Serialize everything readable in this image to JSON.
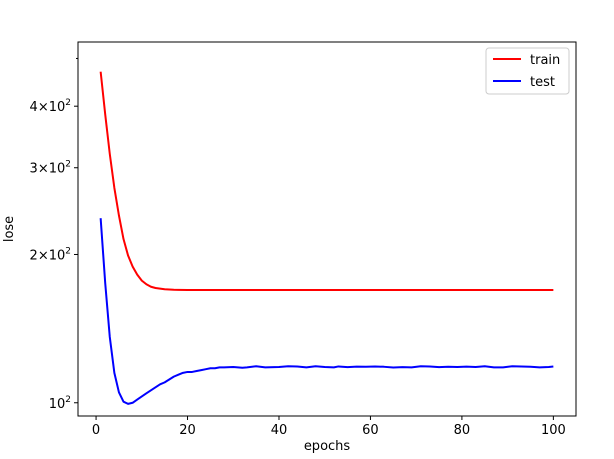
{
  "chart_data": {
    "type": "line",
    "xlabel": "epochs",
    "ylabel": "lose",
    "y_scale": "log",
    "xlim": [
      -3.95,
      104.95
    ],
    "ylim": [
      94,
      540
    ],
    "x_ticks": [
      0,
      20,
      40,
      60,
      80,
      100
    ],
    "y_ticks": [
      {
        "value": 100,
        "mantissa": "",
        "exp": "2"
      },
      {
        "value": 200,
        "mantissa": "2",
        "exp": "2"
      },
      {
        "value": 300,
        "mantissa": "3",
        "exp": "2"
      },
      {
        "value": 400,
        "mantissa": "4",
        "exp": "2"
      }
    ],
    "y_minor_ticks": [
      500
    ],
    "grid": false,
    "legend_position": "top-right",
    "series": [
      {
        "name": "train",
        "color": "#ff0000",
        "points": [
          [
            1,
            470
          ],
          [
            2,
            385
          ],
          [
            3,
            320
          ],
          [
            4,
            273
          ],
          [
            5,
            240
          ],
          [
            6,
            215
          ],
          [
            7,
            199
          ],
          [
            8,
            189
          ],
          [
            9,
            182
          ],
          [
            10,
            177
          ],
          [
            11,
            174
          ],
          [
            12,
            172
          ],
          [
            13,
            171
          ],
          [
            14,
            170.5
          ],
          [
            15,
            170
          ],
          [
            16,
            169.8
          ],
          [
            17,
            169.6
          ],
          [
            18,
            169.5
          ],
          [
            20,
            169.4
          ],
          [
            25,
            169.4
          ],
          [
            30,
            169.4
          ],
          [
            40,
            169.4
          ],
          [
            50,
            169.4
          ],
          [
            60,
            169.4
          ],
          [
            70,
            169.4
          ],
          [
            80,
            169.4
          ],
          [
            90,
            169.4
          ],
          [
            100,
            169.4
          ]
        ]
      },
      {
        "name": "test",
        "color": "#0000ff",
        "points": [
          [
            1,
            237
          ],
          [
            2,
            175
          ],
          [
            3,
            136
          ],
          [
            4,
            115
          ],
          [
            5,
            105
          ],
          [
            6,
            100.5
          ],
          [
            7,
            99.5
          ],
          [
            8,
            100
          ],
          [
            9,
            101.5
          ],
          [
            10,
            103
          ],
          [
            11,
            104.5
          ],
          [
            12,
            106
          ],
          [
            13,
            107.5
          ],
          [
            14,
            109
          ],
          [
            15,
            110
          ],
          [
            16,
            111.5
          ],
          [
            17,
            113
          ],
          [
            18,
            114
          ],
          [
            19,
            115
          ],
          [
            20,
            115.5
          ],
          [
            21,
            115.5
          ],
          [
            22,
            116
          ],
          [
            23,
            116.5
          ],
          [
            24,
            117
          ],
          [
            25,
            117.5
          ],
          [
            26,
            117.5
          ],
          [
            27,
            118
          ],
          [
            28,
            118
          ],
          [
            30,
            118.2
          ],
          [
            32,
            117.8
          ],
          [
            33,
            118
          ],
          [
            35,
            118.6
          ],
          [
            37,
            118
          ],
          [
            40,
            118.2
          ],
          [
            42,
            118.6
          ],
          [
            44,
            118.5
          ],
          [
            46,
            118
          ],
          [
            48,
            118.6
          ],
          [
            50,
            118.2
          ],
          [
            52,
            118
          ],
          [
            53,
            118.5
          ],
          [
            55,
            118.1
          ],
          [
            57,
            118.4
          ],
          [
            59,
            118.3
          ],
          [
            61,
            118.5
          ],
          [
            63,
            118.3
          ],
          [
            65,
            117.9
          ],
          [
            67,
            118.1
          ],
          [
            69,
            118
          ],
          [
            71,
            118.6
          ],
          [
            73,
            118.5
          ],
          [
            75,
            118.1
          ],
          [
            77,
            118.3
          ],
          [
            79,
            118.2
          ],
          [
            81,
            118.4
          ],
          [
            83,
            118.2
          ],
          [
            85,
            118.6
          ],
          [
            87,
            118
          ],
          [
            89,
            118
          ],
          [
            91,
            118.6
          ],
          [
            93,
            118.5
          ],
          [
            95,
            118.3
          ],
          [
            97,
            118
          ],
          [
            99,
            118.2
          ],
          [
            100,
            118.5
          ]
        ]
      }
    ]
  }
}
